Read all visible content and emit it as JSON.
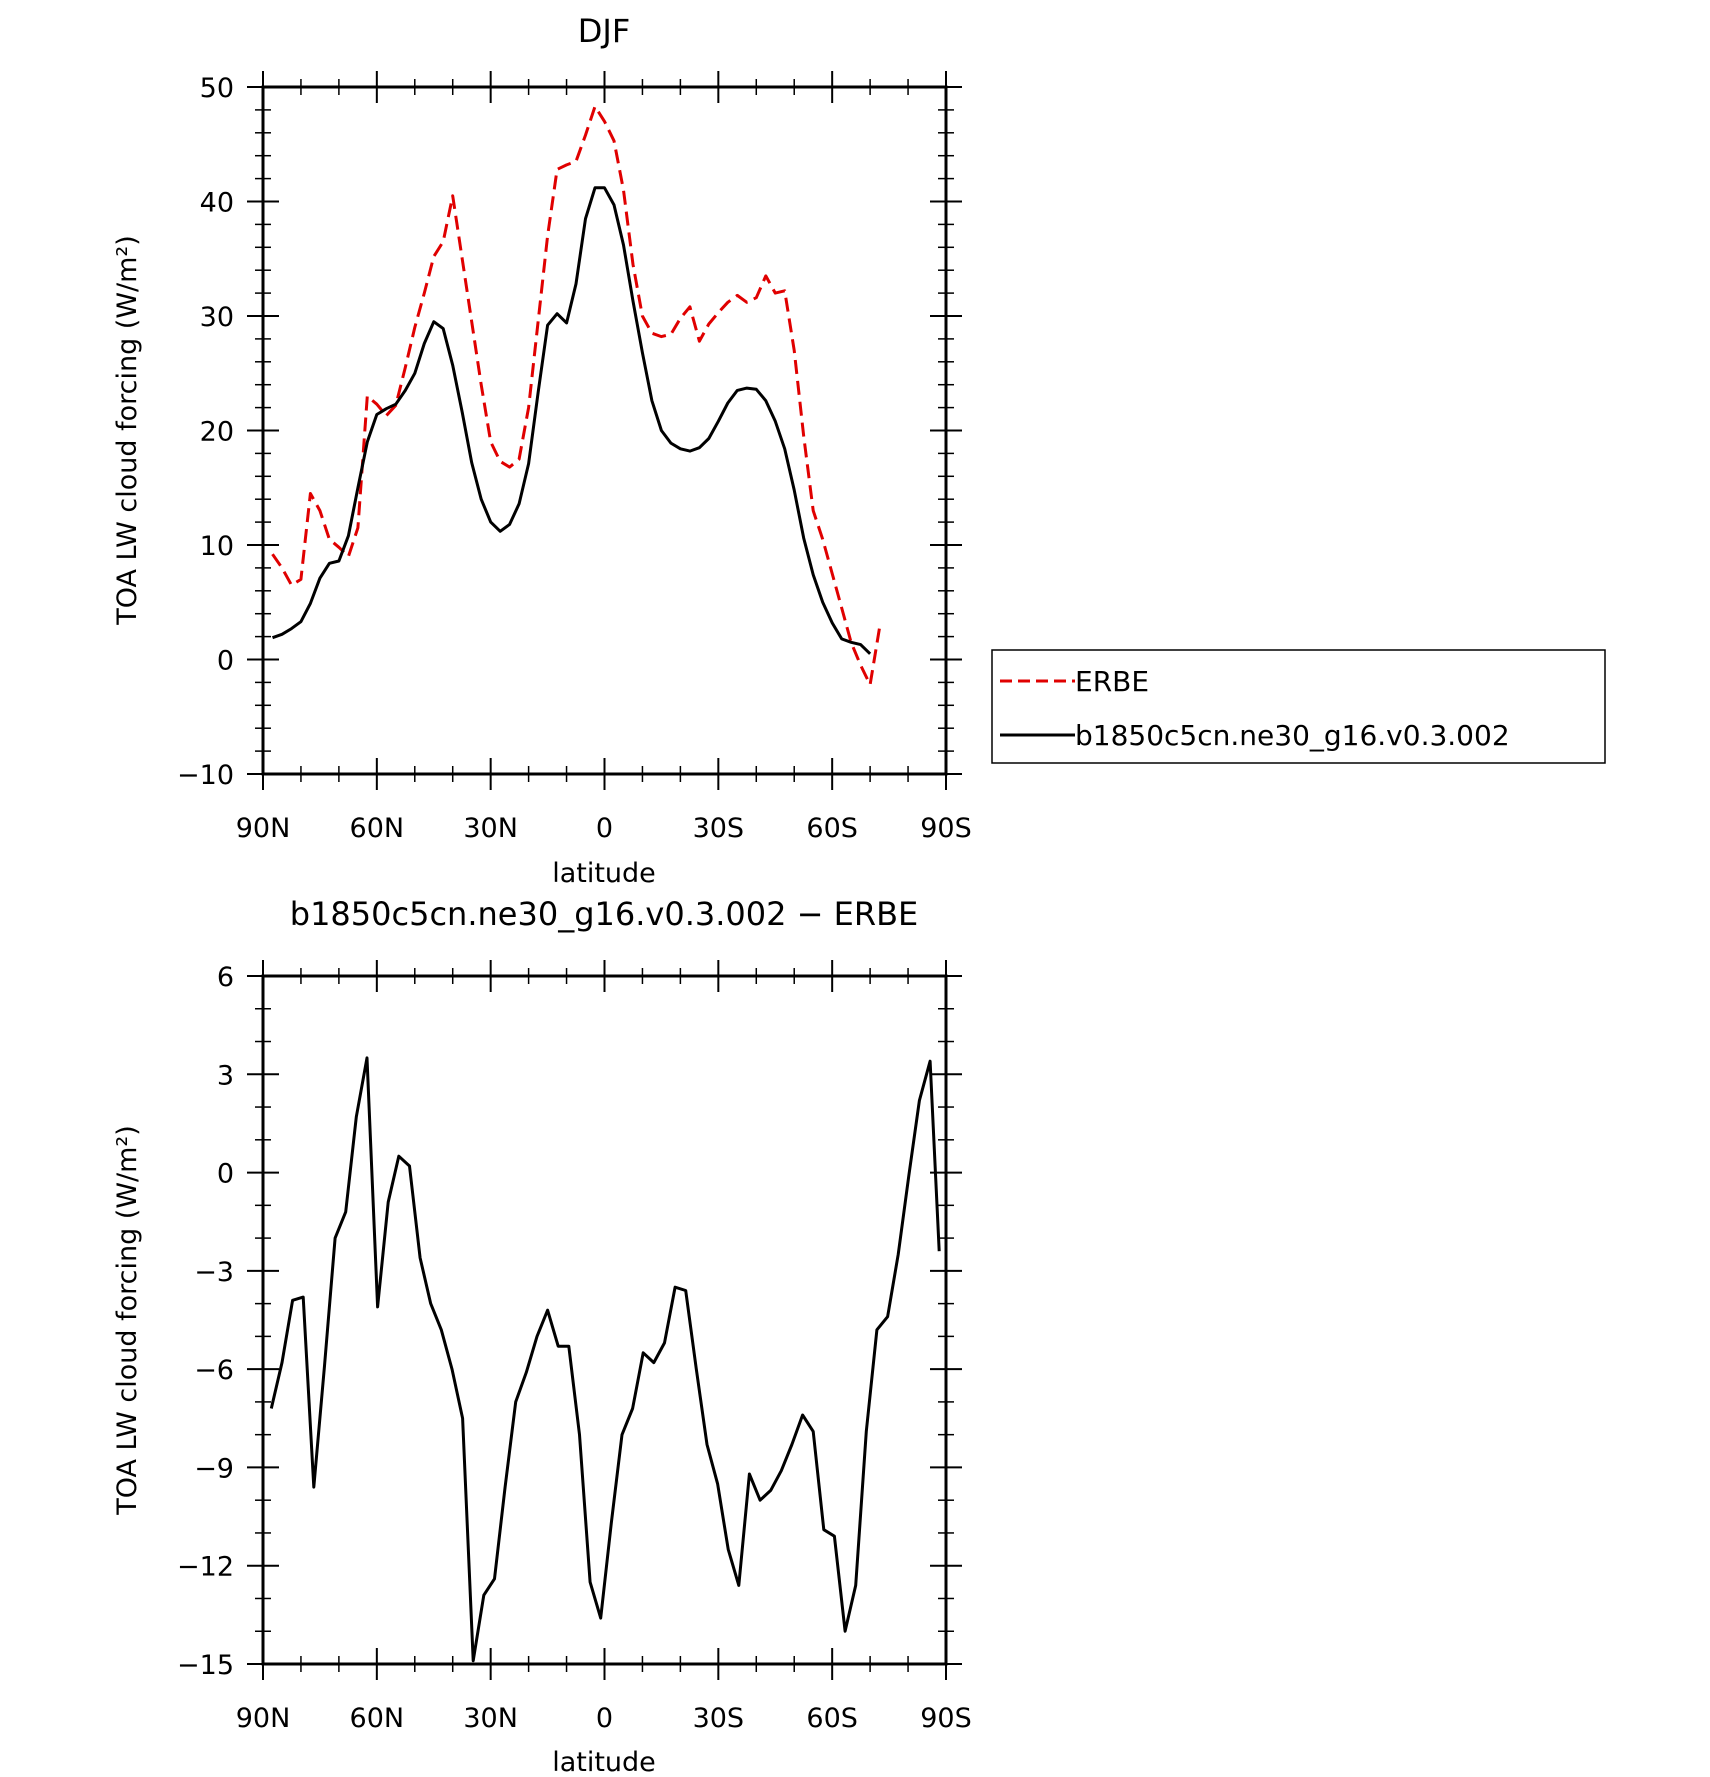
{
  "chart_data": [
    {
      "type": "line",
      "title": "DJF",
      "xlabel": "latitude",
      "ylabel": "TOA LW cloud forcing (W/m²)",
      "xlim": [
        90,
        -90
      ],
      "ylim": [
        -10,
        50
      ],
      "xticks": [
        {
          "value": 90,
          "label": "90N"
        },
        {
          "value": 60,
          "label": "60N"
        },
        {
          "value": 30,
          "label": "30N"
        },
        {
          "value": 0,
          "label": "0"
        },
        {
          "value": -30,
          "label": "30S"
        },
        {
          "value": -60,
          "label": "60S"
        },
        {
          "value": -90,
          "label": "90S"
        }
      ],
      "yticks": [
        {
          "value": -10,
          "label": "−10"
        },
        {
          "value": 0,
          "label": "0"
        },
        {
          "value": 10,
          "label": "10"
        },
        {
          "value": 20,
          "label": "20"
        },
        {
          "value": 30,
          "label": "30"
        },
        {
          "value": 40,
          "label": "40"
        },
        {
          "value": 50,
          "label": "50"
        }
      ],
      "grid": false,
      "legend_position": "right",
      "x": [
        87.5,
        85,
        82.5,
        80,
        77.5,
        75,
        72.5,
        70,
        67.5,
        65,
        62.5,
        60,
        57.5,
        55,
        52.5,
        50,
        47.5,
        45,
        42.5,
        40,
        37.5,
        35,
        32.5,
        30,
        27.5,
        25,
        22.5,
        20,
        17.5,
        15,
        12.5,
        10,
        7.5,
        5,
        2.5,
        0,
        -2.5,
        -5,
        -7.5,
        -10,
        -12.5,
        -15,
        -17.5,
        -20,
        -22.5,
        -25,
        -27.5,
        -30,
        -32.5,
        -35,
        -37.5,
        -40,
        -42.5,
        -45,
        -47.5,
        -50,
        -52.5,
        -55,
        -57.5,
        -60,
        -62.5,
        -65,
        -67.5,
        -70,
        -72.5,
        -75,
        -77.5,
        -80,
        -82.5,
        -85,
        -87.5
      ],
      "series": [
        {
          "name": "ERBE",
          "color": "#e00000",
          "dash": "dashed",
          "values": [
            9.2,
            8.0,
            6.5,
            7.0,
            14.5,
            13.0,
            10.5,
            9.8,
            9.0,
            11.5,
            23.0,
            22.3,
            21.3,
            22.2,
            25.5,
            29.0,
            32.0,
            35.2,
            36.5,
            40.5,
            35.0,
            29.5,
            24.0,
            19.0,
            17.3,
            16.8,
            17.5,
            22.0,
            29.5,
            37.0,
            42.8,
            43.2,
            43.5,
            45.8,
            48.3,
            47.0,
            45.3,
            41.0,
            34.5,
            30.0,
            28.5,
            28.2,
            28.4,
            29.8,
            30.8,
            27.8,
            29.3,
            30.3,
            31.2,
            31.8,
            31.2,
            31.6,
            33.5,
            32.0,
            32.2,
            27.0,
            19.5,
            13.0,
            10.5,
            7.5,
            4.5,
            1.5,
            -0.5,
            -2.2,
            2.8,
            null,
            null,
            null,
            null,
            null,
            null
          ],
          "values_note": ""
        },
        {
          "name": "b1850c5cn.ne30_g16.v0.3.002",
          "color": "#000000",
          "dash": "solid",
          "values": [
            1.9,
            2.2,
            2.7,
            3.3,
            4.9,
            7.1,
            8.4,
            8.6,
            10.8,
            15.0,
            19.0,
            21.4,
            21.9,
            22.3,
            23.5,
            25.0,
            27.6,
            29.5,
            28.9,
            25.7,
            21.6,
            17.2,
            14.0,
            12.0,
            11.2,
            11.8,
            13.6,
            17.1,
            23.3,
            29.2,
            30.2,
            29.4,
            32.8,
            38.5,
            41.2,
            41.2,
            39.7,
            36.2,
            31.3,
            26.8,
            22.6,
            20.0,
            18.9,
            18.4,
            18.2,
            18.5,
            19.3,
            20.8,
            22.4,
            23.5,
            23.7,
            23.6,
            22.6,
            20.8,
            18.4,
            14.8,
            10.6,
            7.4,
            5.0,
            3.2,
            1.8,
            1.5,
            1.3,
            0.5,
            null,
            null,
            null,
            null,
            null,
            null,
            null
          ]
        }
      ]
    },
    {
      "type": "line",
      "title": "b1850c5cn.ne30_g16.v0.3.002 − ERBE",
      "xlabel": "latitude",
      "ylabel": "TOA LW cloud forcing (W/m²)",
      "xlim": [
        90,
        -90
      ],
      "ylim": [
        -15,
        6
      ],
      "xticks": [
        {
          "value": 90,
          "label": "90N"
        },
        {
          "value": 60,
          "label": "60N"
        },
        {
          "value": 30,
          "label": "30N"
        },
        {
          "value": 0,
          "label": "0"
        },
        {
          "value": -30,
          "label": "30S"
        },
        {
          "value": -60,
          "label": "60S"
        },
        {
          "value": -90,
          "label": "90S"
        }
      ],
      "yticks": [
        {
          "value": -15,
          "label": "−15"
        },
        {
          "value": -12,
          "label": "−12"
        },
        {
          "value": -9,
          "label": "−9"
        },
        {
          "value": -6,
          "label": "−6"
        },
        {
          "value": -3,
          "label": "−3"
        },
        {
          "value": 0,
          "label": "0"
        },
        {
          "value": 3,
          "label": "3"
        },
        {
          "value": 6,
          "label": "6"
        }
      ],
      "grid": false,
      "x": [
        87.8,
        85,
        82.2,
        79.4,
        76.6,
        73.8,
        71,
        68.2,
        65.4,
        62.6,
        59.8,
        57,
        54.2,
        51.4,
        48.6,
        45.8,
        43,
        40.2,
        37.4,
        34.6,
        31.8,
        29,
        26.2,
        23.4,
        20.6,
        17.8,
        15,
        12.2,
        9.4,
        6.6,
        3.8,
        1,
        -1.8,
        -4.6,
        -7.4,
        -10.2,
        -13,
        -15.8,
        -18.6,
        -21.4,
        -24.2,
        -27,
        -29.8,
        -32.6,
        -35.4,
        -38.2,
        -41,
        -43.8,
        -46.6,
        -49.4,
        -52.2,
        -55,
        -57.8,
        -60.6,
        -63.4,
        -66.2,
        -69,
        -71.8,
        -74.6,
        -77.4,
        -80.2,
        -83,
        -85.8,
        -88.2
      ],
      "series": [
        {
          "name": "",
          "color": "#000000",
          "dash": "solid",
          "values": [
            -7.2,
            -5.8,
            -3.9,
            -3.8,
            -9.6,
            -5.9,
            -2.0,
            -1.2,
            1.7,
            3.5,
            -4.1,
            -0.9,
            0.5,
            0.2,
            -2.6,
            -4.0,
            -4.8,
            -6.0,
            -7.5,
            -14.9,
            -12.9,
            -12.4,
            -9.6,
            -7.0,
            -6.1,
            -5.0,
            -4.2,
            -5.3,
            -5.3,
            -8.0,
            -12.5,
            -13.6,
            -10.7,
            -8.0,
            -7.2,
            -5.5,
            -5.8,
            -5.2,
            -3.5,
            -3.6,
            -6.0,
            -8.3,
            -9.5,
            -11.5,
            -12.6,
            -9.2,
            -10.0,
            -9.7,
            -9.1,
            -8.3,
            -7.4,
            -7.9,
            -10.9,
            -11.1,
            -14.0,
            -12.6,
            -7.9,
            -4.8,
            -4.4,
            -2.5,
            -0.1,
            2.2,
            3.4,
            -2.4
          ]
        }
      ]
    }
  ]
}
